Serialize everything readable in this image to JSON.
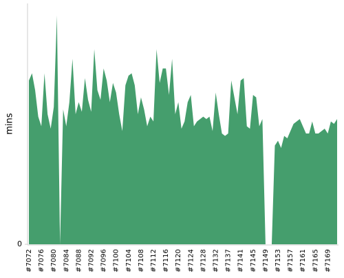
{
  "chart_data": {
    "type": "area",
    "y_label": "mins",
    "categories": [
      "#7072",
      null,
      null,
      null,
      "#7076",
      null,
      null,
      null,
      "#7080",
      null,
      null,
      null,
      "#7084",
      null,
      null,
      null,
      "#7088",
      null,
      null,
      null,
      "#7092",
      null,
      null,
      null,
      "#7096",
      null,
      null,
      null,
      "#7100",
      null,
      null,
      null,
      "#7104",
      null,
      null,
      null,
      "#7108",
      null,
      null,
      null,
      "#7112",
      null,
      null,
      null,
      "#7116",
      null,
      null,
      null,
      "#7120",
      null,
      null,
      null,
      "#7124",
      null,
      null,
      null,
      "#7128",
      null,
      null,
      null,
      "#7132",
      null,
      null,
      null,
      "#7137",
      null,
      null,
      null,
      "#7141",
      null,
      null,
      null,
      "#7145",
      null,
      null,
      null,
      "#7149",
      null,
      null,
      null,
      "#7153",
      null,
      null,
      null,
      "#7157",
      null,
      null,
      null,
      "#7161",
      null,
      null,
      null,
      "#7165",
      null,
      null,
      null,
      "#7169",
      null,
      null,
      null
    ],
    "values": [
      68,
      71,
      64,
      53,
      49,
      71,
      54,
      48,
      57,
      95,
      0,
      56,
      49,
      59,
      77,
      54,
      59,
      55,
      69,
      60,
      55,
      81,
      64,
      60,
      73,
      68,
      59,
      67,
      63,
      54,
      47,
      66,
      70,
      71,
      66,
      54,
      61,
      56,
      49,
      53,
      51,
      81,
      67,
      73,
      73,
      62,
      77,
      54,
      59,
      48,
      51,
      59,
      62,
      49,
      51,
      52,
      53,
      52,
      53,
      47,
      63,
      54,
      46,
      45,
      46,
      68,
      61,
      54,
      68,
      69,
      49,
      48,
      62,
      61,
      49,
      52,
      0,
      0,
      0,
      41,
      43,
      40,
      45,
      44,
      47,
      50,
      51,
      52,
      49,
      46,
      46,
      51,
      46,
      46,
      47,
      48,
      46,
      51,
      50,
      52
    ],
    "color": "#459e6d",
    "ylim": [
      0,
      100
    ],
    "yticks": [
      0
    ]
  }
}
